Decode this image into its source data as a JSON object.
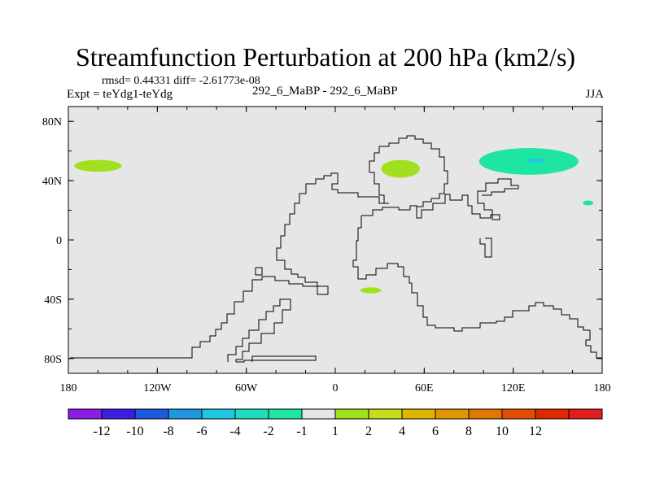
{
  "chart_data": {
    "type": "heatmap",
    "title": "Streamfunction Perturbation at 200 hPa (km2/s)",
    "stats": "rmsd= 0.44331 diff= -2.61773e-08",
    "expt": "Expt = teYdg1-teYdg",
    "case": "292_6_MaBP - 292_6_MaBP",
    "season": "JJA",
    "x_ticks": [
      {
        "value": -180,
        "label": "180"
      },
      {
        "value": -120,
        "label": "120W"
      },
      {
        "value": -60,
        "label": "60W"
      },
      {
        "value": 0,
        "label": "0"
      },
      {
        "value": 60,
        "label": "60E"
      },
      {
        "value": 120,
        "label": "120E"
      },
      {
        "value": 180,
        "label": "180"
      }
    ],
    "y_ticks": [
      {
        "value": 80,
        "label": "80N"
      },
      {
        "value": 40,
        "label": "40N"
      },
      {
        "value": 0,
        "label": "0"
      },
      {
        "value": -40,
        "label": "40S"
      },
      {
        "value": -80,
        "label": "80S"
      }
    ],
    "xlim": [
      -180,
      180
    ],
    "ylim": [
      -90,
      90
    ],
    "colorbar": {
      "colors": [
        "#8a1ee0",
        "#3c1ee0",
        "#1e5ae0",
        "#1e96e0",
        "#1ec8e0",
        "#1edcbe",
        "#1ee6a0",
        "#e6e6e6",
        "#a0e01e",
        "#c8dc1e",
        "#e0b400",
        "#e09600",
        "#e07800",
        "#e05000",
        "#e02800",
        "#e01e1e"
      ],
      "labels": [
        "-12",
        "-10",
        "-8",
        "-6",
        "-4",
        "-2",
        "-1",
        "1",
        "2",
        "4",
        "6",
        "8",
        "10",
        "12"
      ]
    },
    "anomalies": [
      {
        "name": "north-pacific-positive",
        "level": "2",
        "color": "#a0e01e",
        "lon": [
          -176,
          -144
        ],
        "lat": [
          54,
          46
        ]
      },
      {
        "name": "caspian-positive",
        "level": "2",
        "color": "#a0e01e",
        "lon": [
          31,
          57
        ],
        "lat": [
          42,
          54
        ]
      },
      {
        "name": "south-atlantic-positive",
        "level": "2",
        "color": "#a0e01e",
        "lon": [
          17,
          31
        ],
        "lat": [
          -36,
          -32
        ]
      },
      {
        "name": "west-pacific-negative",
        "level": "-1",
        "color": "#1ee6a0",
        "lon": [
          97,
          164
        ],
        "lat": [
          44,
          62
        ]
      },
      {
        "name": "west-pacific-core",
        "level": "-2",
        "color": "#1ec8e0",
        "lon": [
          129,
          141
        ],
        "lat": [
          52,
          55
        ]
      },
      {
        "name": "central-pacific-negative",
        "level": "-1",
        "color": "#1ee6a0",
        "lon": [
          167,
          174
        ],
        "lat": [
          24,
          26
        ]
      }
    ]
  }
}
